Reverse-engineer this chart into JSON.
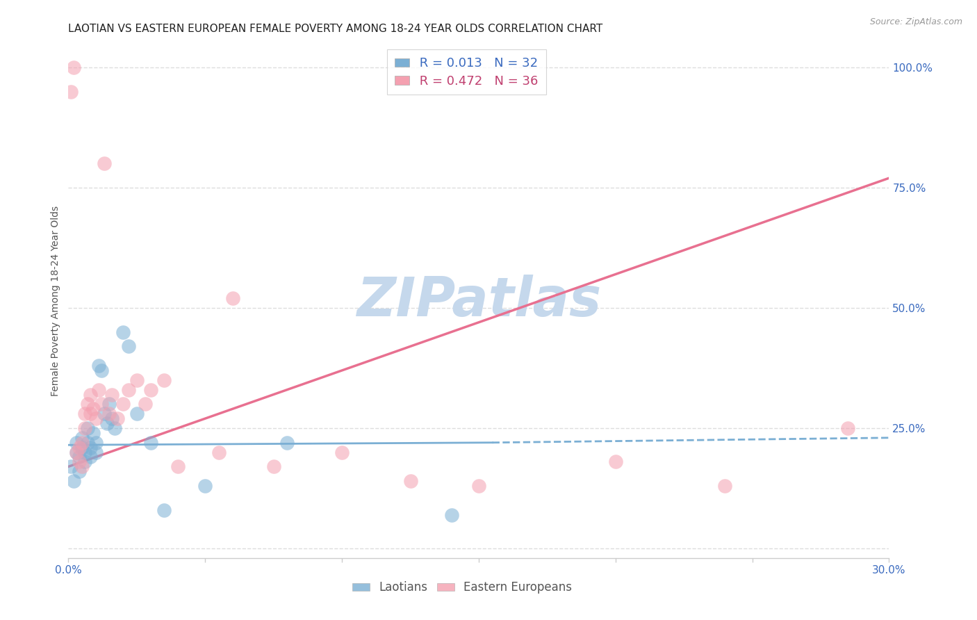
{
  "title": "LAOTIAN VS EASTERN EUROPEAN FEMALE POVERTY AMONG 18-24 YEAR OLDS CORRELATION CHART",
  "source": "Source: ZipAtlas.com",
  "ylabel": "Female Poverty Among 18-24 Year Olds",
  "xlim": [
    0.0,
    0.3
  ],
  "ylim": [
    -0.02,
    1.05
  ],
  "yticks": [
    0.0,
    0.25,
    0.5,
    0.75,
    1.0
  ],
  "ytick_labels": [
    "",
    "25.0%",
    "50.0%",
    "75.0%",
    "100.0%"
  ],
  "xticks": [
    0.0,
    0.05,
    0.1,
    0.15,
    0.2,
    0.25,
    0.3
  ],
  "xtick_labels": [
    "0.0%",
    "",
    "",
    "",
    "",
    "",
    "30.0%"
  ],
  "laotian_color": "#7bafd4",
  "eastern_color": "#f4a0b0",
  "laotian_R": 0.013,
  "laotian_N": 32,
  "eastern_R": 0.472,
  "eastern_N": 36,
  "laotian_x": [
    0.001,
    0.002,
    0.003,
    0.003,
    0.004,
    0.004,
    0.005,
    0.005,
    0.006,
    0.006,
    0.007,
    0.007,
    0.008,
    0.008,
    0.009,
    0.01,
    0.01,
    0.011,
    0.012,
    0.013,
    0.014,
    0.015,
    0.016,
    0.017,
    0.02,
    0.022,
    0.025,
    0.03,
    0.035,
    0.05,
    0.08,
    0.14
  ],
  "laotian_y": [
    0.17,
    0.14,
    0.2,
    0.22,
    0.19,
    0.16,
    0.21,
    0.23,
    0.18,
    0.2,
    0.22,
    0.25,
    0.21,
    0.19,
    0.24,
    0.2,
    0.22,
    0.38,
    0.37,
    0.28,
    0.26,
    0.3,
    0.27,
    0.25,
    0.45,
    0.42,
    0.28,
    0.22,
    0.08,
    0.13,
    0.22,
    0.07
  ],
  "eastern_x": [
    0.001,
    0.002,
    0.003,
    0.004,
    0.004,
    0.005,
    0.005,
    0.006,
    0.006,
    0.007,
    0.008,
    0.008,
    0.009,
    0.01,
    0.011,
    0.012,
    0.013,
    0.015,
    0.016,
    0.018,
    0.02,
    0.022,
    0.025,
    0.028,
    0.03,
    0.035,
    0.04,
    0.055,
    0.06,
    0.075,
    0.1,
    0.125,
    0.15,
    0.2,
    0.24,
    0.285
  ],
  "eastern_y": [
    0.95,
    1.0,
    0.2,
    0.21,
    0.18,
    0.22,
    0.17,
    0.28,
    0.25,
    0.3,
    0.28,
    0.32,
    0.29,
    0.27,
    0.33,
    0.3,
    0.8,
    0.28,
    0.32,
    0.27,
    0.3,
    0.33,
    0.35,
    0.3,
    0.33,
    0.35,
    0.17,
    0.2,
    0.52,
    0.17,
    0.2,
    0.14,
    0.13,
    0.18,
    0.13,
    0.25
  ],
  "title_fontsize": 11,
  "label_fontsize": 10,
  "tick_fontsize": 11,
  "watermark": "ZIPatlas",
  "watermark_color": "#c5d8ec",
  "background_color": "#ffffff",
  "grid_color": "#dddddd"
}
